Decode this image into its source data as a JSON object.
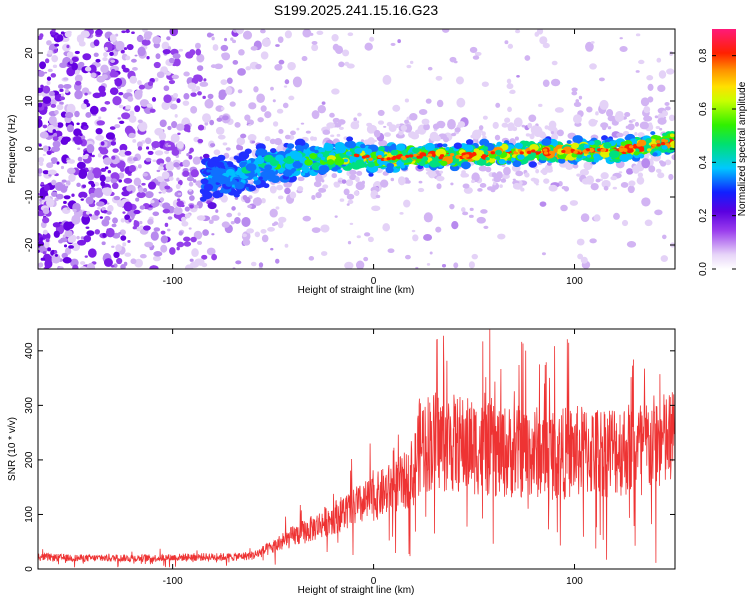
{
  "title": "S199.2025.241.15.16.G23",
  "chart_data": [
    {
      "type": "heatmap",
      "name": "spectrogram",
      "xlabel": "Height of straight line (km)",
      "ylabel": "Frequency (Hz)",
      "xlim": [
        -167,
        150
      ],
      "ylim": [
        -25,
        25
      ],
      "xticks": [
        -100,
        0,
        100
      ],
      "xtick_labels": [
        "-100",
        "0",
        "100"
      ],
      "yticks": [
        -20,
        -10,
        0,
        10,
        20
      ],
      "ytick_labels": [
        "-20",
        "-10",
        "0",
        "10",
        "20"
      ],
      "signal_track": {
        "description": "dominant frequency ridge",
        "x": [
          -85,
          -70,
          -55,
          -40,
          -25,
          -10,
          0,
          20,
          40,
          60,
          80,
          100,
          120,
          140,
          150
        ],
        "y": [
          -6,
          -6,
          -3.5,
          -2.5,
          -2,
          -1.5,
          -2,
          -1.5,
          -1.5,
          -1,
          -0.5,
          -0.5,
          -0.5,
          1,
          2
        ]
      },
      "colorbar": {
        "label": "Normalized spectral amplitude",
        "range": [
          0.0,
          0.9
        ],
        "ticks": [
          0.0,
          0.2,
          0.4,
          0.6,
          0.8
        ],
        "tick_labels": [
          "0.0",
          "0.2",
          "0.4",
          "0.6",
          "0.8"
        ],
        "colormap": "rainbow (white-violet-blue-cyan-green-yellow-orange-red-magenta)"
      }
    },
    {
      "type": "line",
      "name": "snr",
      "xlabel": "Height of straight line (km)",
      "ylabel": "SNR (10 * v/v)",
      "xlim": [
        -167,
        150
      ],
      "ylim": [
        0,
        440
      ],
      "xticks": [
        -100,
        0,
        100
      ],
      "xtick_labels": [
        "-100",
        "0",
        "100"
      ],
      "yticks": [
        0,
        100,
        200,
        300,
        400
      ],
      "ytick_labels": [
        "0",
        "100",
        "200",
        "300",
        "400"
      ],
      "color": "#ee3333",
      "series": [
        {
          "name": "SNR",
          "x": [
            -167,
            -150,
            -130,
            -110,
            -90,
            -70,
            -60,
            -50,
            -40,
            -30,
            -20,
            -10,
            0,
            10,
            20,
            22,
            24,
            30,
            40,
            50,
            60,
            70,
            80,
            90,
            100,
            110,
            120,
            130,
            140,
            150
          ],
          "y": [
            22,
            20,
            20,
            20,
            22,
            22,
            25,
            40,
            60,
            75,
            95,
            110,
            130,
            150,
            170,
            220,
            230,
            235,
            230,
            225,
            215,
            215,
            215,
            210,
            215,
            215,
            220,
            220,
            230,
            235
          ]
        }
      ]
    }
  ]
}
